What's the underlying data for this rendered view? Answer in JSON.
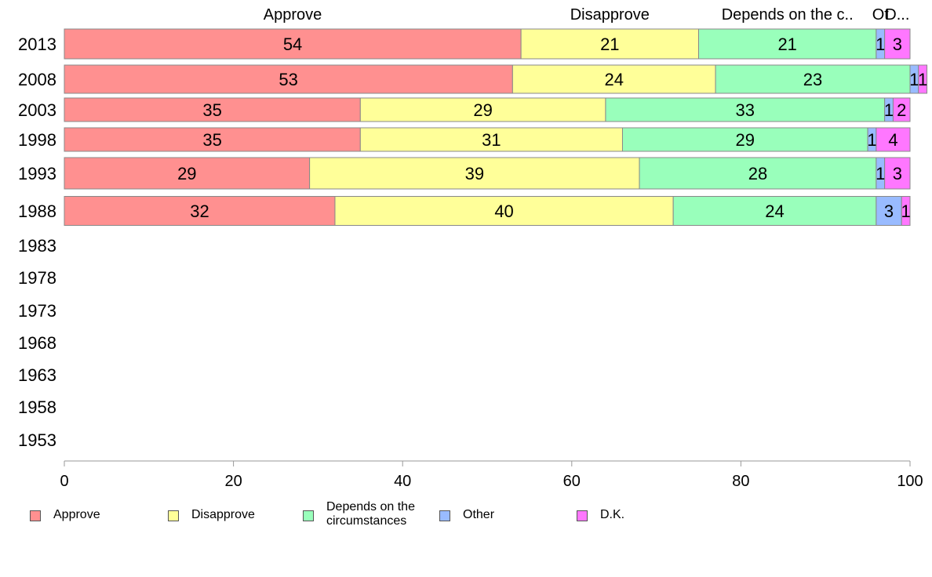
{
  "chart_data": {
    "type": "bar",
    "orientation": "horizontal",
    "stacked": true,
    "categories": [
      "2013",
      "2008",
      "2003",
      "1998",
      "1993",
      "1988",
      "1983",
      "1978",
      "1973",
      "1968",
      "1963",
      "1958",
      "1953"
    ],
    "series": [
      {
        "name": "Approve",
        "color": "#ff9090",
        "values": [
          54,
          53,
          35,
          35,
          29,
          32,
          null,
          null,
          null,
          null,
          null,
          null,
          null
        ]
      },
      {
        "name": "Disapprove",
        "color": "#ffff99",
        "values": [
          21,
          24,
          29,
          31,
          39,
          40,
          null,
          null,
          null,
          null,
          null,
          null,
          null
        ]
      },
      {
        "name": "Depends on the circumstances",
        "color": "#99ffbb",
        "values": [
          21,
          23,
          33,
          29,
          28,
          24,
          null,
          null,
          null,
          null,
          null,
          null,
          null
        ]
      },
      {
        "name": "Other",
        "color": "#99bbff",
        "values": [
          1,
          1,
          1,
          1,
          1,
          3,
          null,
          null,
          null,
          null,
          null,
          null,
          null
        ]
      },
      {
        "name": "D.K.",
        "color": "#ff77ff",
        "values": [
          3,
          1,
          2,
          4,
          3,
          1,
          null,
          null,
          null,
          null,
          null,
          null,
          null
        ]
      }
    ],
    "top_labels": [
      "Approve",
      "Disapprove",
      "Depends on the c..",
      "Ot",
      "D..."
    ],
    "xlim": [
      0,
      100
    ],
    "x_ticks": [
      "0",
      "20",
      "40",
      "60",
      "80",
      "100"
    ],
    "grid": false,
    "legend_position": "bottom",
    "legend_labels": [
      "Approve",
      "Disapprove",
      "Depends on the circumstances",
      "Other",
      "D.K."
    ]
  }
}
